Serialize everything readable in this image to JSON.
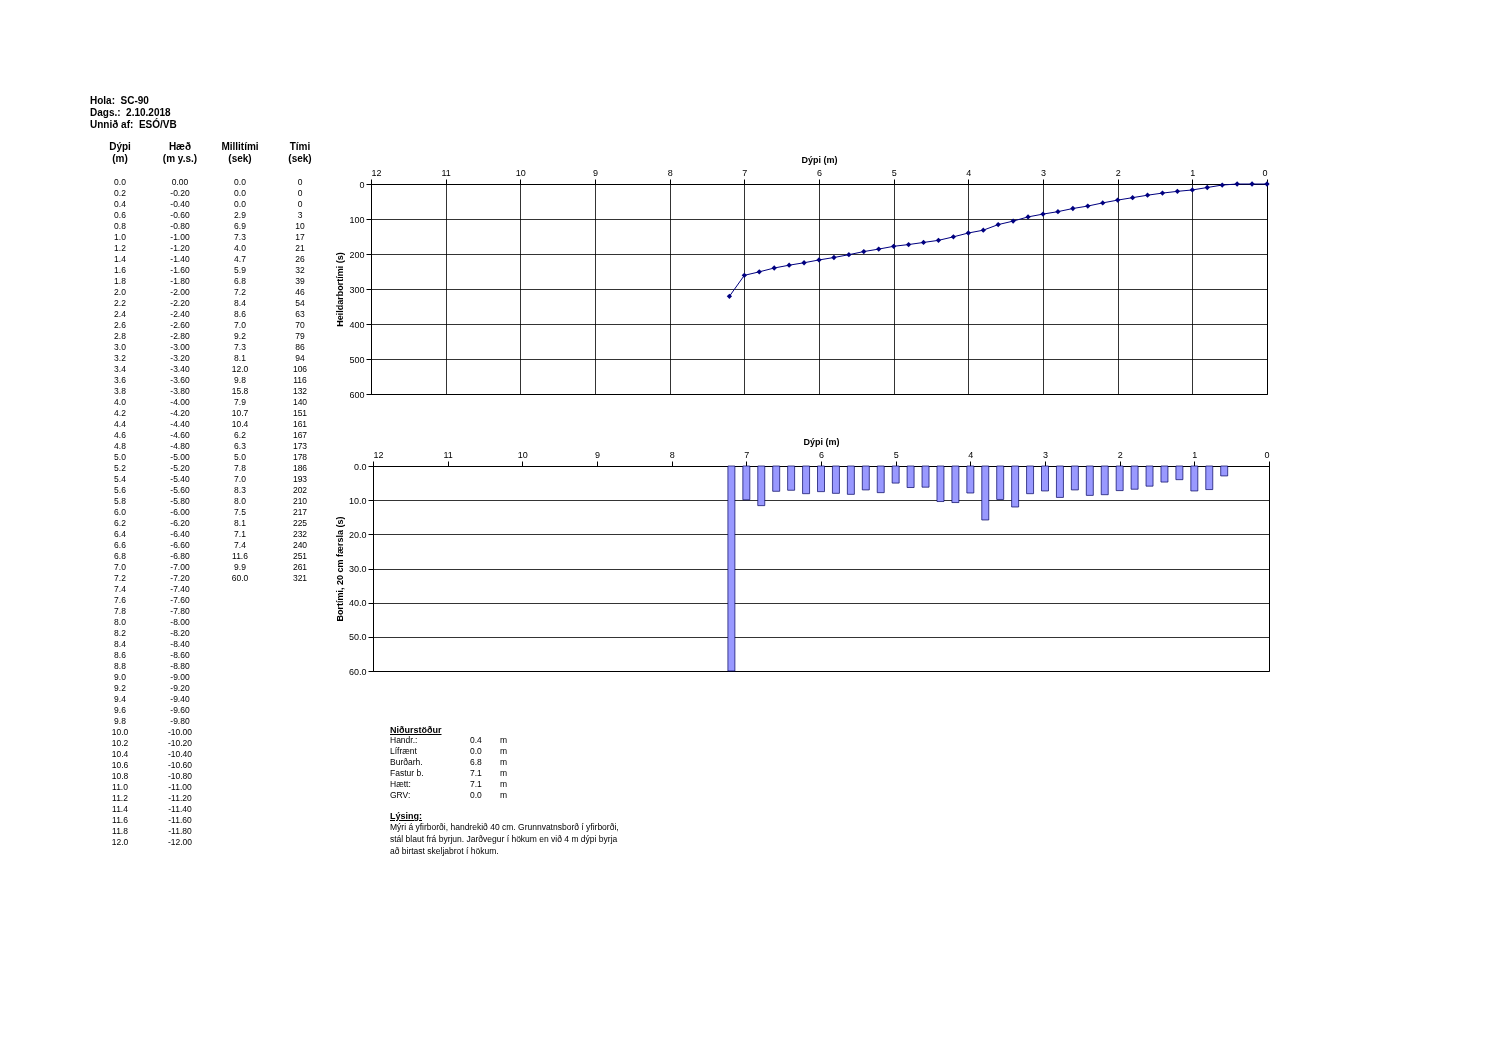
{
  "chart_data": [
    {
      "type": "other",
      "annotations": [
        "Hola:  SC-90",
        "Dags.:  2.10.2018",
        "Unnið af:  ESÓ/VB"
      ],
      "categories": [
        "Dýpi (m)",
        "Hæð (m y.s.)",
        "Millitími (sek)",
        "Tími (sek)"
      ],
      "cell_labels": [
        [
          "0.0",
          "0.00",
          "0.0",
          "0"
        ],
        [
          "0.2",
          "-0.20",
          "0.0",
          "0"
        ],
        [
          "0.4",
          "-0.40",
          "0.0",
          "0"
        ],
        [
          "0.6",
          "-0.60",
          "2.9",
          "3"
        ],
        [
          "0.8",
          "-0.80",
          "6.9",
          "10"
        ],
        [
          "1.0",
          "-1.00",
          "7.3",
          "17"
        ],
        [
          "1.2",
          "-1.20",
          "4.0",
          "21"
        ],
        [
          "1.4",
          "-1.40",
          "4.7",
          "26"
        ],
        [
          "1.6",
          "-1.60",
          "5.9",
          "32"
        ],
        [
          "1.8",
          "-1.80",
          "6.8",
          "39"
        ],
        [
          "2.0",
          "-2.00",
          "7.2",
          "46"
        ],
        [
          "2.2",
          "-2.20",
          "8.4",
          "54"
        ],
        [
          "2.4",
          "-2.40",
          "8.6",
          "63"
        ],
        [
          "2.6",
          "-2.60",
          "7.0",
          "70"
        ],
        [
          "2.8",
          "-2.80",
          "9.2",
          "79"
        ],
        [
          "3.0",
          "-3.00",
          "7.3",
          "86"
        ],
        [
          "3.2",
          "-3.20",
          "8.1",
          "94"
        ],
        [
          "3.4",
          "-3.40",
          "12.0",
          "106"
        ],
        [
          "3.6",
          "-3.60",
          "9.8",
          "116"
        ],
        [
          "3.8",
          "-3.80",
          "15.8",
          "132"
        ],
        [
          "4.0",
          "-4.00",
          "7.9",
          "140"
        ],
        [
          "4.2",
          "-4.20",
          "10.7",
          "151"
        ],
        [
          "4.4",
          "-4.40",
          "10.4",
          "161"
        ],
        [
          "4.6",
          "-4.60",
          "6.2",
          "167"
        ],
        [
          "4.8",
          "-4.80",
          "6.3",
          "173"
        ],
        [
          "5.0",
          "-5.00",
          "5.0",
          "178"
        ],
        [
          "5.2",
          "-5.20",
          "7.8",
          "186"
        ],
        [
          "5.4",
          "-5.40",
          "7.0",
          "193"
        ],
        [
          "5.6",
          "-5.60",
          "8.3",
          "202"
        ],
        [
          "5.8",
          "-5.80",
          "8.0",
          "210"
        ],
        [
          "6.0",
          "-6.00",
          "7.5",
          "217"
        ],
        [
          "6.2",
          "-6.20",
          "8.1",
          "225"
        ],
        [
          "6.4",
          "-6.40",
          "7.1",
          "232"
        ],
        [
          "6.6",
          "-6.60",
          "7.4",
          "240"
        ],
        [
          "6.8",
          "-6.80",
          "11.6",
          "251"
        ],
        [
          "7.0",
          "-7.00",
          "9.9",
          "261"
        ],
        [
          "7.2",
          "-7.20",
          "60.0",
          "321"
        ],
        [
          "7.4",
          "-7.40",
          null,
          null
        ],
        [
          "7.6",
          "-7.60",
          null,
          null
        ],
        [
          "7.8",
          "-7.80",
          null,
          null
        ],
        [
          "8.0",
          "-8.00",
          null,
          null
        ],
        [
          "8.2",
          "-8.20",
          null,
          null
        ],
        [
          "8.4",
          "-8.40",
          null,
          null
        ],
        [
          "8.6",
          "-8.60",
          null,
          null
        ],
        [
          "8.8",
          "-8.80",
          null,
          null
        ],
        [
          "9.0",
          "-9.00",
          null,
          null
        ],
        [
          "9.2",
          "-9.20",
          null,
          null
        ],
        [
          "9.4",
          "-9.40",
          null,
          null
        ],
        [
          "9.6",
          "-9.60",
          null,
          null
        ],
        [
          "9.8",
          "-9.80",
          null,
          null
        ],
        [
          "10.0",
          "-10.00",
          null,
          null
        ],
        [
          "10.2",
          "-10.20",
          null,
          null
        ],
        [
          "10.4",
          "-10.40",
          null,
          null
        ],
        [
          "10.6",
          "-10.60",
          null,
          null
        ],
        [
          "10.8",
          "-10.80",
          null,
          null
        ],
        [
          "11.0",
          "-11.00",
          null,
          null
        ],
        [
          "11.2",
          "-11.20",
          null,
          null
        ],
        [
          "11.4",
          "-11.40",
          null,
          null
        ],
        [
          "11.6",
          "-11.60",
          null,
          null
        ],
        [
          "11.8",
          "-11.80",
          null,
          null
        ],
        [
          "12.0",
          "-12.00",
          null,
          null
        ]
      ]
    },
    {
      "type": "line",
      "xlabel": "Dýpi (m)",
      "ylabel": "Heildarbortími (s)",
      "xlim": [
        12,
        0
      ],
      "xticks": [
        12,
        11,
        10,
        9,
        8,
        7,
        6,
        5,
        4,
        3,
        2,
        1,
        0
      ],
      "ylim": [
        600,
        0
      ],
      "yticks": [
        0,
        100,
        200,
        300,
        400,
        500,
        600
      ],
      "grid": true,
      "marker": "diamond",
      "x": [
        0,
        0.2,
        0.4,
        0.6,
        0.8,
        1,
        1.2,
        1.4,
        1.6,
        1.8,
        2,
        2.2,
        2.4,
        2.6,
        2.8,
        3,
        3.2,
        3.4,
        3.6,
        3.8,
        4,
        4.2,
        4.4,
        4.6,
        4.8,
        5,
        5.2,
        5.4,
        5.6,
        5.8,
        6,
        6.2,
        6.4,
        6.6,
        6.8,
        7,
        7.2
      ],
      "series": [
        {
          "color": "#000080",
          "values": [
            0,
            0,
            0,
            3,
            10,
            17,
            21,
            26,
            32,
            39,
            46,
            54,
            63,
            70,
            79,
            86,
            94,
            106,
            116,
            132,
            140,
            151,
            161,
            167,
            173,
            178,
            186,
            193,
            202,
            210,
            217,
            225,
            232,
            240,
            251,
            261,
            321
          ]
        }
      ]
    },
    {
      "type": "bar",
      "xlabel": "Dýpi (m)",
      "ylabel": "Bortími, 20 cm færsla (s)",
      "xlim": [
        12,
        0
      ],
      "xticks": [
        12,
        11,
        10,
        9,
        8,
        7,
        6,
        5,
        4,
        3,
        2,
        1,
        0
      ],
      "ylim": [
        60,
        0
      ],
      "yticks": [
        {
          "value": 0,
          "label": "0.0"
        },
        {
          "value": 10,
          "label": "10.0"
        },
        {
          "value": 20,
          "label": "20.0"
        },
        {
          "value": 30,
          "label": "30.0"
        },
        {
          "value": 40,
          "label": "40.0"
        },
        {
          "value": 50,
          "label": "50.0"
        },
        {
          "value": 60,
          "label": "60.0"
        }
      ],
      "grid": "y",
      "x": [
        0,
        0.2,
        0.4,
        0.6,
        0.8,
        1,
        1.2,
        1.4,
        1.6,
        1.8,
        2,
        2.2,
        2.4,
        2.6,
        2.8,
        3,
        3.2,
        3.4,
        3.6,
        3.8,
        4,
        4.2,
        4.4,
        4.6,
        4.8,
        5,
        5.2,
        5.4,
        5.6,
        5.8,
        6,
        6.2,
        6.4,
        6.6,
        6.8,
        7,
        7.2
      ],
      "series": [
        {
          "color": "#9999ff",
          "values": [
            0,
            0,
            0,
            2.9,
            6.9,
            7.3,
            4,
            4.7,
            5.9,
            6.8,
            7.2,
            8.4,
            8.6,
            7,
            9.2,
            7.3,
            8.1,
            12,
            9.8,
            15.8,
            7.9,
            10.7,
            10.4,
            6.2,
            6.3,
            5,
            7.8,
            7,
            8.3,
            8,
            7.5,
            8.1,
            7.1,
            7.4,
            11.6,
            9.9,
            60
          ]
        }
      ]
    },
    {
      "type": "other",
      "title": "Niðurstöður",
      "cell_labels": [
        [
          "Handr.:",
          "0.4",
          "m"
        ],
        [
          "Lífrænt",
          "0.0",
          "m"
        ],
        [
          "Burðarh.",
          "6.8",
          "m"
        ],
        [
          "Fastur b.",
          "7.1",
          "m"
        ],
        [
          "Hætt:",
          "7.1",
          "m"
        ],
        [
          "GRV:",
          "0.0",
          "m"
        ]
      ],
      "subtitle": "Lýsing:",
      "annotations": [
        "Mýri á yfirborði, handrekið 40 cm. Grunnvatnsborð í yfirborði, stál blaut frá byrjun. Jarðvegur í hökum en við 4 m dýpi byrja að birtast skeljabrot í hökum."
      ]
    }
  ]
}
